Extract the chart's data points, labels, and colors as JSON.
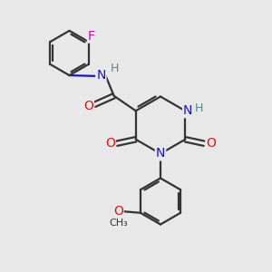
{
  "bg_color": "#e8e8e8",
  "bond_color": "#333333",
  "N_color": "#1414d4",
  "O_color": "#dd1414",
  "F_color": "#cc00bb",
  "H_color": "#4a8a7a",
  "lw": 1.6,
  "fs": 10,
  "dfs": 9,
  "xlim": [
    0,
    10
  ],
  "ylim": [
    0,
    10
  ]
}
